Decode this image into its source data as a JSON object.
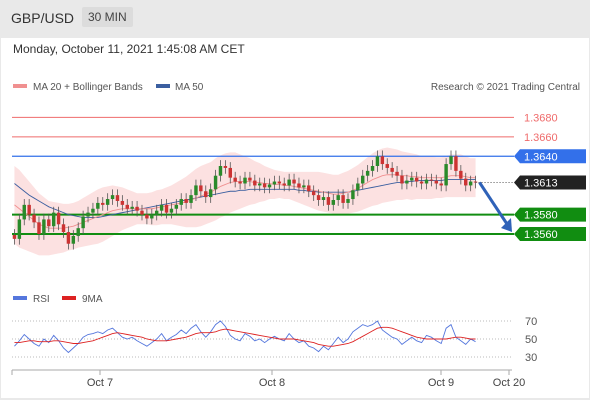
{
  "header": {
    "symbol": "GBP/USD",
    "timeframe": "30 MIN"
  },
  "timestamp": "Monday, October 11, 2021 1:45:08 AM CET",
  "colors": {
    "resistance": "#ef6b6b",
    "pivot": "#3370ea",
    "support": "#118d11",
    "ma20": "#f09090",
    "ma50": "#3b5fa0",
    "band": "#fbdcdc",
    "candle": "#2a8a2a",
    "candle_down": "#cc3333",
    "rsi": "#5577dd",
    "rsi_ma": "#dd2222"
  },
  "legend": {
    "ma20": "MA 20 + Bollinger Bands",
    "ma50": "MA 50",
    "rsi": "RSI",
    "rsi_ma": "9MA"
  },
  "watermark": "Research © 2021 Trading Central",
  "chart_data": {
    "type": "line",
    "title": "GBP/USD",
    "ylim": [
      1.3525,
      1.37
    ],
    "levels": [
      {
        "value": 1.368,
        "label": "1.3680",
        "kind": "resistance"
      },
      {
        "value": 1.366,
        "label": "1.3660",
        "kind": "resistance"
      },
      {
        "value": 1.364,
        "label": "1.3640",
        "kind": "pivot"
      },
      {
        "value": 1.358,
        "label": "1.3580",
        "kind": "support"
      },
      {
        "value": 1.356,
        "label": "1.3560",
        "kind": "support"
      }
    ],
    "last_price": {
      "value": 1.3613,
      "label": "1.3613"
    },
    "x_labels": [
      "Oct 7",
      "Oct 8",
      "Oct 9",
      "Oct 20"
    ],
    "close": [
      1.3555,
      1.3575,
      1.359,
      1.358,
      1.3572,
      1.356,
      1.3575,
      1.3568,
      1.3582,
      1.357,
      1.3562,
      1.355,
      1.3558,
      1.3566,
      1.3578,
      1.3582,
      1.3586,
      1.3592,
      1.359,
      1.3596,
      1.36,
      1.3594,
      1.359,
      1.3586,
      1.3588,
      1.3584,
      1.358,
      1.3576,
      1.358,
      1.3584,
      1.359,
      1.3582,
      1.3586,
      1.359,
      1.3596,
      1.3592,
      1.36,
      1.361,
      1.3604,
      1.3598,
      1.3606,
      1.362,
      1.363,
      1.3628,
      1.3618,
      1.3614,
      1.3612,
      1.3618,
      1.3615,
      1.361,
      1.3612,
      1.3608,
      1.3611,
      1.3614,
      1.3612,
      1.361,
      1.3616,
      1.3612,
      1.3608,
      1.361,
      1.3604,
      1.36,
      1.3595,
      1.3598,
      1.359,
      1.3595,
      1.36,
      1.3592,
      1.3596,
      1.3605,
      1.3612,
      1.362,
      1.3625,
      1.363,
      1.364,
      1.3632,
      1.3628,
      1.3624,
      1.362,
      1.3612,
      1.3615,
      1.3618,
      1.3614,
      1.3612,
      1.3616,
      1.3615,
      1.3612,
      1.361,
      1.3632,
      1.364,
      1.3625,
      1.3617,
      1.361,
      1.3614,
      1.3613
    ],
    "ma20": [
      1.359,
      1.3586,
      1.3582,
      1.3578,
      1.3574,
      1.357,
      1.3568,
      1.3566,
      1.3566,
      1.3566,
      1.3566,
      1.3567,
      1.3568,
      1.357,
      1.3572,
      1.3574,
      1.3576,
      1.3578,
      1.358,
      1.3582,
      1.3584,
      1.3585,
      1.3586,
      1.3586,
      1.3586,
      1.3586,
      1.3586,
      1.3586,
      1.3586,
      1.3587,
      1.3588,
      1.3589,
      1.359,
      1.3591,
      1.3592,
      1.3593,
      1.3595,
      1.3597,
      1.3599,
      1.3601,
      1.3603,
      1.3606,
      1.3609,
      1.3611,
      1.3613,
      1.3614,
      1.3614,
      1.3614,
      1.3614,
      1.3613,
      1.3613,
      1.3612,
      1.3612,
      1.3611,
      1.3611,
      1.361,
      1.361,
      1.3609,
      1.3608,
      1.3607,
      1.3606,
      1.3605,
      1.3604,
      1.3603,
      1.3602,
      1.3601,
      1.3601,
      1.3602,
      1.3603,
      1.3605,
      1.3607,
      1.361,
      1.3613,
      1.3616,
      1.3618,
      1.362,
      1.3621,
      1.3621,
      1.3621,
      1.362,
      1.362,
      1.3619,
      1.3619,
      1.3618,
      1.3618,
      1.3618,
      1.3618,
      1.3618,
      1.3619,
      1.362,
      1.362,
      1.362,
      1.3619,
      1.3618,
      1.3618
    ],
    "ma50": [
      1.3612,
      1.3608,
      1.3604,
      1.36,
      1.3597,
      1.3594,
      1.3591,
      1.3588,
      1.3586,
      1.3584,
      1.3582,
      1.358,
      1.3579,
      1.3578,
      1.3577,
      1.3577,
      1.3577,
      1.3577,
      1.3578,
      1.3579,
      1.358,
      1.3581,
      1.3582,
      1.3583,
      1.3584,
      1.3585,
      1.3586,
      1.3587,
      1.3588,
      1.3589,
      1.359,
      1.3591,
      1.3592,
      1.3593,
      1.3594,
      1.3595,
      1.3596,
      1.3597,
      1.3598,
      1.3599,
      1.36,
      1.3601,
      1.3602,
      1.3603,
      1.3604,
      1.3604,
      1.3605,
      1.3605,
      1.3606,
      1.3606,
      1.3606,
      1.3606,
      1.3606,
      1.3606,
      1.3606,
      1.3606,
      1.3606,
      1.3606,
      1.3605,
      1.3605,
      1.3604,
      1.3604,
      1.3603,
      1.3603,
      1.3603,
      1.3603,
      1.3603,
      1.3603,
      1.3603,
      1.3604,
      1.3605,
      1.3606,
      1.3607,
      1.3608,
      1.3609,
      1.361,
      1.3611,
      1.3612,
      1.3613,
      1.3613,
      1.3614,
      1.3614,
      1.3615,
      1.3615,
      1.3615,
      1.3615,
      1.3615,
      1.3615,
      1.3616,
      1.3616,
      1.3616,
      1.3616,
      1.3616,
      1.3616,
      1.3616
    ],
    "band_width": [
      0.004,
      0.004,
      0.0038,
      0.0036,
      0.0034,
      0.0032,
      0.003,
      0.0028,
      0.0027,
      0.0026,
      0.0025,
      0.0024,
      0.0024,
      0.0024,
      0.0025,
      0.0026,
      0.0027,
      0.0028,
      0.0028,
      0.0027,
      0.0026,
      0.0024,
      0.0022,
      0.002,
      0.0018,
      0.0016,
      0.0016,
      0.0016,
      0.0017,
      0.0018,
      0.0018,
      0.0019,
      0.002,
      0.0022,
      0.0024,
      0.0026,
      0.0028,
      0.003,
      0.0031,
      0.0031,
      0.0031,
      0.0032,
      0.0032,
      0.0032,
      0.0031,
      0.003,
      0.0028,
      0.0026,
      0.0024,
      0.0022,
      0.002,
      0.0018,
      0.0016,
      0.0015,
      0.0014,
      0.0014,
      0.0014,
      0.0015,
      0.0016,
      0.0017,
      0.0018,
      0.0019,
      0.002,
      0.002,
      0.002,
      0.002,
      0.002,
      0.0021,
      0.0022,
      0.0023,
      0.0024,
      0.0025,
      0.0026,
      0.0027,
      0.0028,
      0.0028,
      0.0028,
      0.0027,
      0.0026,
      0.0025,
      0.0024,
      0.0024,
      0.0023,
      0.0022,
      0.0022,
      0.0022,
      0.0021,
      0.0021,
      0.0021,
      0.0022,
      0.0022,
      0.0022,
      0.0021,
      0.002,
      0.002
    ],
    "projection": {
      "from": 1.3613,
      "to": 1.356
    },
    "rsi": {
      "ticks": [
        70,
        50,
        30
      ],
      "values": [
        42,
        48,
        55,
        50,
        45,
        42,
        50,
        46,
        54,
        48,
        40,
        35,
        40,
        45,
        52,
        55,
        56,
        58,
        56,
        60,
        62,
        57,
        52,
        50,
        52,
        48,
        45,
        42,
        46,
        50,
        56,
        48,
        52,
        55,
        60,
        56,
        62,
        66,
        58,
        52,
        58,
        66,
        70,
        64,
        54,
        50,
        48,
        56,
        53,
        48,
        50,
        46,
        50,
        53,
        50,
        48,
        56,
        50,
        46,
        48,
        42,
        40,
        36,
        42,
        38,
        45,
        52,
        46,
        50,
        58,
        62,
        66,
        64,
        66,
        70,
        60,
        56,
        52,
        50,
        44,
        48,
        52,
        48,
        46,
        54,
        52,
        48,
        45,
        62,
        66,
        52,
        48,
        44,
        50,
        47
      ],
      "ma": [
        46,
        46,
        47,
        48,
        48,
        47,
        47,
        47,
        48,
        48,
        47,
        46,
        45,
        45,
        46,
        47,
        48,
        50,
        52,
        54,
        56,
        57,
        56,
        55,
        54,
        53,
        52,
        50,
        49,
        48,
        48,
        48,
        49,
        50,
        51,
        52,
        54,
        56,
        57,
        57,
        57,
        58,
        60,
        61,
        60,
        59,
        58,
        57,
        56,
        55,
        54,
        53,
        52,
        51,
        50,
        50,
        50,
        50,
        49,
        48,
        47,
        46,
        44,
        43,
        42,
        42,
        43,
        44,
        45,
        47,
        50,
        53,
        56,
        59,
        62,
        63,
        63,
        62,
        60,
        58,
        56,
        54,
        52,
        51,
        50,
        50,
        50,
        50,
        50,
        51,
        52,
        52,
        51,
        50,
        50
      ]
    }
  }
}
